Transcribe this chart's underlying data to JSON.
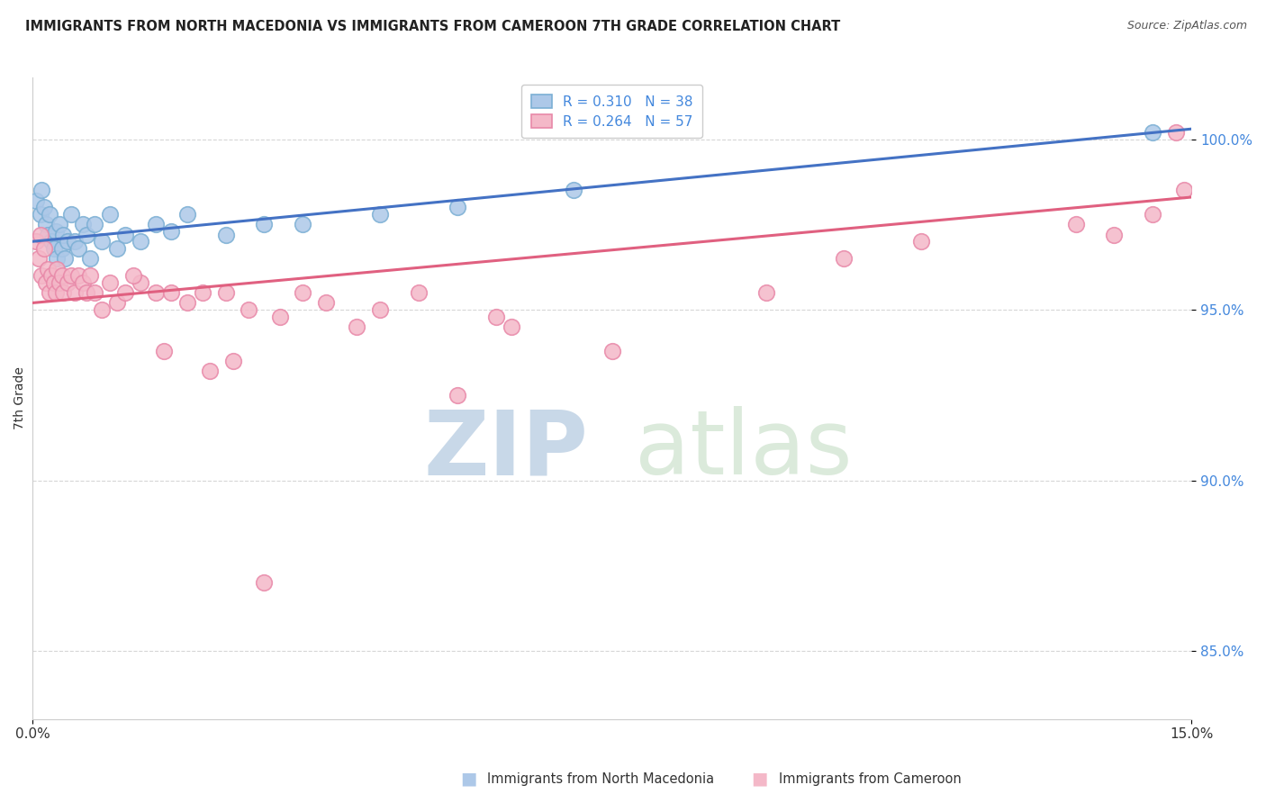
{
  "title": "IMMIGRANTS FROM NORTH MACEDONIA VS IMMIGRANTS FROM CAMEROON 7TH GRADE CORRELATION CHART",
  "source": "Source: ZipAtlas.com",
  "ylabel": "7th Grade",
  "xlim": [
    0.0,
    15.0
  ],
  "ylim": [
    83.0,
    101.8
  ],
  "yticks": [
    85.0,
    90.0,
    95.0,
    100.0
  ],
  "ytick_labels": [
    "85.0%",
    "90.0%",
    "95.0%",
    "100.0%"
  ],
  "xtick_labels": [
    "0.0%",
    "15.0%"
  ],
  "xtick_positions": [
    0.0,
    15.0
  ],
  "blue_R": 0.31,
  "blue_N": 38,
  "pink_R": 0.264,
  "pink_N": 57,
  "blue_color": "#adc8e8",
  "blue_edge_color": "#7bafd4",
  "pink_color": "#f4b8c8",
  "pink_edge_color": "#e888a8",
  "blue_line_color": "#4472c4",
  "pink_line_color": "#e06080",
  "legend_label_blue": "Immigrants from North Macedonia",
  "legend_label_pink": "Immigrants from Cameroon",
  "blue_scatter_x": [
    0.05,
    0.1,
    0.12,
    0.15,
    0.18,
    0.2,
    0.22,
    0.25,
    0.28,
    0.3,
    0.32,
    0.35,
    0.38,
    0.4,
    0.42,
    0.45,
    0.5,
    0.55,
    0.6,
    0.65,
    0.7,
    0.75,
    0.8,
    0.9,
    1.0,
    1.1,
    1.2,
    1.4,
    1.6,
    1.8,
    2.0,
    2.5,
    3.0,
    3.5,
    4.5,
    5.5,
    7.0,
    14.5
  ],
  "blue_scatter_y": [
    98.2,
    97.8,
    98.5,
    98.0,
    97.5,
    97.2,
    97.8,
    97.0,
    96.8,
    97.3,
    96.5,
    97.5,
    96.8,
    97.2,
    96.5,
    97.0,
    97.8,
    97.0,
    96.8,
    97.5,
    97.2,
    96.5,
    97.5,
    97.0,
    97.8,
    96.8,
    97.2,
    97.0,
    97.5,
    97.3,
    97.8,
    97.2,
    97.5,
    97.5,
    97.8,
    98.0,
    98.5,
    100.2
  ],
  "pink_scatter_x": [
    0.05,
    0.08,
    0.1,
    0.12,
    0.15,
    0.18,
    0.2,
    0.22,
    0.25,
    0.28,
    0.3,
    0.32,
    0.35,
    0.38,
    0.4,
    0.45,
    0.5,
    0.55,
    0.6,
    0.65,
    0.7,
    0.75,
    0.8,
    0.9,
    1.0,
    1.1,
    1.2,
    1.4,
    1.6,
    1.8,
    2.0,
    2.2,
    2.5,
    2.8,
    3.2,
    3.8,
    4.2,
    5.0,
    5.5,
    6.2,
    7.5,
    9.5,
    10.5,
    11.5,
    13.5,
    14.0,
    14.5,
    14.8,
    14.9,
    3.5,
    4.5,
    6.0,
    2.3,
    2.6,
    1.3,
    1.7,
    3.0
  ],
  "pink_scatter_y": [
    97.0,
    96.5,
    97.2,
    96.0,
    96.8,
    95.8,
    96.2,
    95.5,
    96.0,
    95.8,
    95.5,
    96.2,
    95.8,
    96.0,
    95.5,
    95.8,
    96.0,
    95.5,
    96.0,
    95.8,
    95.5,
    96.0,
    95.5,
    95.0,
    95.8,
    95.2,
    95.5,
    95.8,
    95.5,
    95.5,
    95.2,
    95.5,
    95.5,
    95.0,
    94.8,
    95.2,
    94.5,
    95.5,
    92.5,
    94.5,
    93.8,
    95.5,
    96.5,
    97.0,
    97.5,
    97.2,
    97.8,
    100.2,
    98.5,
    95.5,
    95.0,
    94.8,
    93.2,
    93.5,
    96.0,
    93.8,
    87.0
  ],
  "blue_line_x0": 0.0,
  "blue_line_y0": 97.0,
  "blue_line_x1": 15.0,
  "blue_line_y1": 100.3,
  "pink_line_x0": 0.0,
  "pink_line_y0": 95.2,
  "pink_line_x1": 15.0,
  "pink_line_y1": 98.3,
  "watermark_zip": "ZIP",
  "watermark_atlas": "atlas",
  "watermark_color": "#dde8f0",
  "background_color": "#ffffff",
  "grid_color": "#cccccc",
  "title_fontsize": 10.5,
  "source_fontsize": 9,
  "tick_fontsize": 11,
  "legend_fontsize": 11
}
